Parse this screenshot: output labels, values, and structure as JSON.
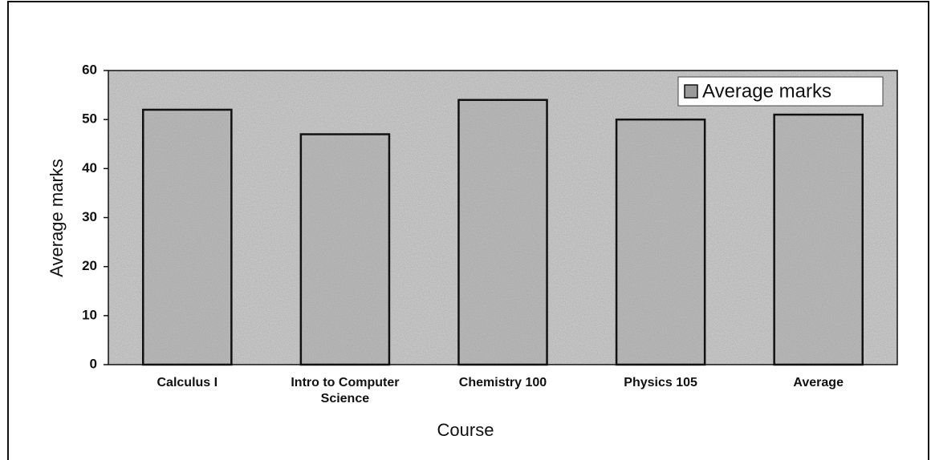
{
  "chart_data": {
    "type": "bar",
    "x_label": "Course",
    "y_label": "Average marks",
    "categories": [
      "Calculus I",
      "Intro to Computer Science",
      "Chemistry 100",
      "Physics 105",
      "Average"
    ],
    "series": [
      {
        "name": "Average marks",
        "color": "#9a9a9a",
        "values": [
          52,
          47,
          54,
          50,
          51
        ]
      }
    ],
    "ylim": [
      0,
      60
    ],
    "yticks": [
      0,
      10,
      20,
      30,
      40,
      50,
      60
    ],
    "grid": false,
    "legend": "upper right"
  }
}
